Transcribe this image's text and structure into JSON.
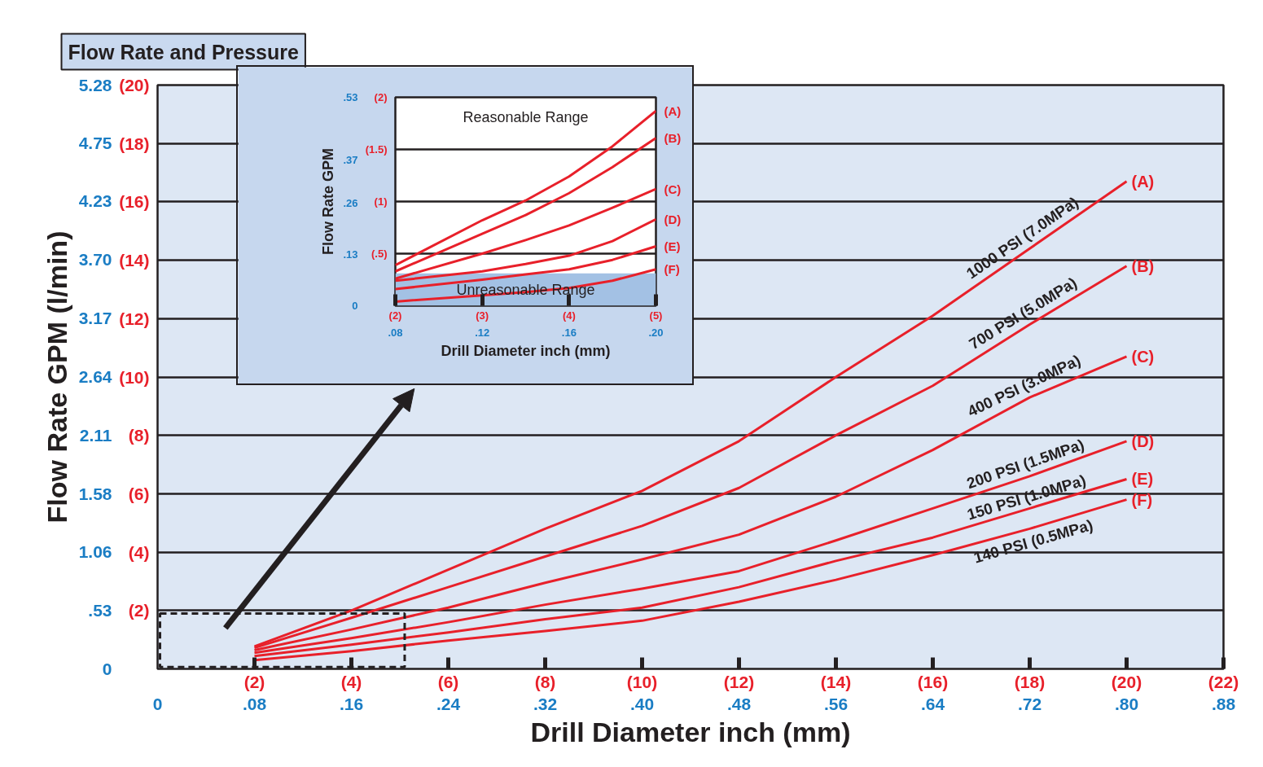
{
  "chart_data": [
    {
      "type": "line",
      "title": "Flow Rate and Pressure",
      "xlabel": "Drill Diameter inch (mm)",
      "y2label": "Flow Rate GPM (l/min)",
      "x": [
        2,
        4,
        6,
        8,
        10,
        12,
        14,
        16,
        18,
        20
      ],
      "series": [
        {
          "name": "(A)",
          "color": "#e8202a",
          "values": [
            0.77,
            2.0,
            3.4,
            4.8,
            6.1,
            7.8,
            10.0,
            12.1,
            14.4,
            16.7
          ]
        },
        {
          "name": "(B)",
          "color": "#e8202a",
          "values": [
            0.72,
            1.75,
            2.8,
            3.85,
            4.9,
            6.2,
            8.0,
            9.7,
            11.8,
            13.8
          ]
        },
        {
          "name": "(C)",
          "color": "#e8202a",
          "values": [
            0.64,
            1.35,
            2.1,
            2.95,
            3.75,
            4.6,
            5.9,
            7.5,
            9.3,
            10.7
          ]
        },
        {
          "name": "(D)",
          "color": "#e8202a",
          "values": [
            0.55,
            1.05,
            1.6,
            2.2,
            2.75,
            3.35,
            4.4,
            5.5,
            6.6,
            7.8
          ]
        },
        {
          "name": "(E)",
          "color": "#e8202a",
          "values": [
            0.44,
            0.83,
            1.25,
            1.7,
            2.1,
            2.8,
            3.7,
            4.5,
            5.5,
            6.5
          ]
        },
        {
          "name": "(F)",
          "color": "#e8202a",
          "values": [
            0.3,
            0.61,
            0.97,
            1.3,
            1.65,
            2.3,
            3.05,
            3.9,
            4.8,
            5.8
          ]
        }
      ],
      "xlim": [
        0,
        22
      ],
      "xticks": [
        {
          "value": 2,
          "label": "(2)"
        },
        {
          "value": 4,
          "label": "(4)"
        },
        {
          "value": 6,
          "label": "(6)"
        },
        {
          "value": 8,
          "label": "(8)"
        },
        {
          "value": 10,
          "label": "(10)"
        },
        {
          "value": 12,
          "label": "(12)"
        },
        {
          "value": 14,
          "label": "(14)"
        },
        {
          "value": 16,
          "label": "(16)"
        },
        {
          "value": 18,
          "label": "(18)"
        },
        {
          "value": 20,
          "label": "(20)"
        },
        {
          "value": 22,
          "label": "(22)"
        }
      ],
      "x2lim": [
        0,
        0.88
      ],
      "x2ticks": [
        0,
        {
          "value": 0.08,
          "label": ".08"
        },
        {
          "value": 0.16,
          "label": ".16"
        },
        {
          "value": 0.24,
          "label": ".24"
        },
        {
          "value": 0.32,
          "label": ".32"
        },
        {
          "value": 0.4,
          "label": ".40"
        },
        {
          "value": 0.48,
          "label": ".48"
        },
        {
          "value": 0.56,
          "label": ".56"
        },
        {
          "value": 0.64,
          "label": ".64"
        },
        {
          "value": 0.72,
          "label": ".72"
        },
        {
          "value": 0.8,
          "label": ".80"
        },
        {
          "value": 0.88,
          "label": ".88"
        }
      ],
      "ylim": [
        0,
        20
      ],
      "yticks": [
        {
          "value": 2,
          "label": "(2)"
        },
        {
          "value": 4,
          "label": "(4)"
        },
        {
          "value": 6,
          "label": "(6)"
        },
        {
          "value": 8,
          "label": "(8)"
        },
        {
          "value": 10,
          "label": "(10)"
        },
        {
          "value": 12,
          "label": "(12)"
        },
        {
          "value": 14,
          "label": "(14)"
        },
        {
          "value": 16,
          "label": "(16)"
        },
        {
          "value": 18,
          "label": "(18)"
        },
        {
          "value": 20,
          "label": "(20)"
        }
      ],
      "y2lim": [
        0,
        5.28
      ],
      "y2ticks": [
        0,
        {
          "value": 0.53,
          "label": ".53"
        },
        1.06,
        1.58,
        2.11,
        2.64,
        3.17,
        {
          "value": 3.7,
          "label": "3.70"
        },
        4.23,
        4.75,
        5.28
      ],
      "annotations": [
        "1000 PSI (7.0MPa)",
        "700 PSI (5.0MPa)",
        "400 PSI (3.0MPa)",
        "200 PSI (1.5MPa)",
        "150 PSI (1.0MPa)",
        "140 PSI (0.5MPa)"
      ],
      "grid": "y"
    },
    {
      "type": "line",
      "xlabel": "Drill Diameter inch (mm)",
      "y2label": "Flow Rate GPM",
      "x": [
        2,
        3,
        3.5,
        4,
        4.5,
        5
      ],
      "series": [
        {
          "name": "(A)",
          "color": "#e8202a",
          "values": [
            0.39,
            0.82,
            1.01,
            1.24,
            1.53,
            1.87
          ]
        },
        {
          "name": "(B)",
          "color": "#e8202a",
          "values": [
            0.33,
            0.69,
            0.87,
            1.08,
            1.33,
            1.61
          ]
        },
        {
          "name": "(C)",
          "color": "#e8202a",
          "values": [
            0.26,
            0.5,
            0.63,
            0.77,
            0.94,
            1.12
          ]
        },
        {
          "name": "(D)",
          "color": "#e8202a",
          "values": [
            0.24,
            0.33,
            0.4,
            0.48,
            0.62,
            0.83
          ]
        },
        {
          "name": "(E)",
          "color": "#e8202a",
          "values": [
            0.16,
            0.25,
            0.3,
            0.35,
            0.44,
            0.57
          ]
        },
        {
          "name": "(F)",
          "color": "#e8202a",
          "values": [
            0.04,
            0.1,
            0.13,
            0.17,
            0.24,
            0.35
          ]
        }
      ],
      "xlim": [
        2,
        5
      ],
      "xticks": [
        {
          "value": 2,
          "label": "(2)"
        },
        {
          "value": 3,
          "label": "(3)"
        },
        {
          "value": 4,
          "label": "(4)"
        },
        {
          "value": 5,
          "label": "(5)"
        }
      ],
      "x2lim": [
        0.08,
        0.2
      ],
      "x2ticks": [
        {
          "value": 0.08,
          "label": ".08"
        },
        {
          "value": 0.12,
          "label": ".12"
        },
        {
          "value": 0.16,
          "label": ".16"
        },
        {
          "value": 0.2,
          "label": ".20"
        }
      ],
      "ylim": [
        0,
        2
      ],
      "yticks": [
        {
          "value": 0.5,
          "label": "(.5)"
        },
        {
          "value": 1,
          "label": "(1)"
        },
        {
          "value": 1.5,
          "label": "(1.5)"
        },
        {
          "value": 2,
          "label": "(2)"
        }
      ],
      "y2lim": [
        0,
        0.53
      ],
      "y2ticks": [
        0,
        {
          "value": 0.13,
          "label": ".13"
        },
        {
          "value": 0.26,
          "label": ".26"
        },
        {
          "value": 0.37,
          "label": ".37"
        },
        {
          "value": 0.53,
          "label": ".53"
        }
      ],
      "bands": [
        {
          "axis": "y",
          "from": 0,
          "to": 0.31,
          "label": "Unreasonable Range",
          "color": "#a3c1e4"
        }
      ],
      "annotations": [
        "Reasonable Range"
      ],
      "grid": "y"
    }
  ]
}
